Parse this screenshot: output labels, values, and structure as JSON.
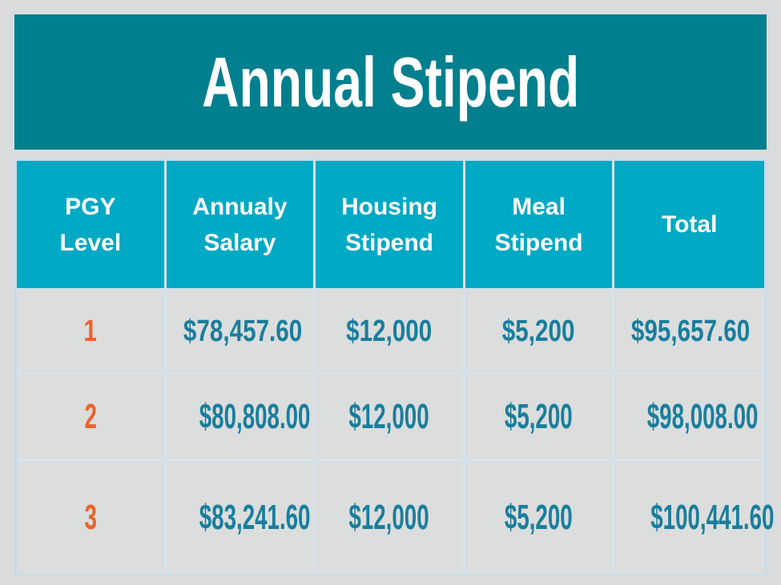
{
  "title": "Annual Stipend",
  "table": {
    "headers": [
      "PGY\nLevel",
      "Annualy\nSalary",
      "Housing\nStipend",
      "Meal\nStipend",
      "Total"
    ],
    "rows": [
      [
        "1",
        "$78,457.60",
        "$12,000",
        "$5,200",
        "$95,657.60"
      ],
      [
        "2",
        "$80,808.00",
        "$12,000",
        "$5,200",
        "$98,008.00"
      ],
      [
        "3",
        "$83,241.60",
        "$12,000",
        "$5,200",
        "$100,441.60"
      ]
    ]
  },
  "chart_data": {
    "type": "table",
    "title": "Annual Stipend",
    "columns": [
      "PGY Level",
      "Annualy Salary",
      "Housing Stipend",
      "Meal Stipend",
      "Total"
    ],
    "rows": [
      {
        "pgy_level": 1,
        "annual_salary": "$78,457.60",
        "housing_stipend": "$12,000",
        "meal_stipend": "$5,200",
        "total": "$95,657.60"
      },
      {
        "pgy_level": 2,
        "annual_salary": "$80,808.00",
        "housing_stipend": "$12,000",
        "meal_stipend": "$5,200",
        "total": "$98,008.00"
      },
      {
        "pgy_level": 3,
        "annual_salary": "$83,241.60",
        "housing_stipend": "$12,000",
        "meal_stipend": "$5,200",
        "total": "$100,441.60"
      }
    ]
  },
  "colors": {
    "banner_teal": "#007f8e",
    "header_cyan": "#00a9c4",
    "value_teal": "#187e9d",
    "level_orange": "#ec6329",
    "background_gray": "#dadbdc",
    "gridline_blue": "#d6e4ee"
  }
}
